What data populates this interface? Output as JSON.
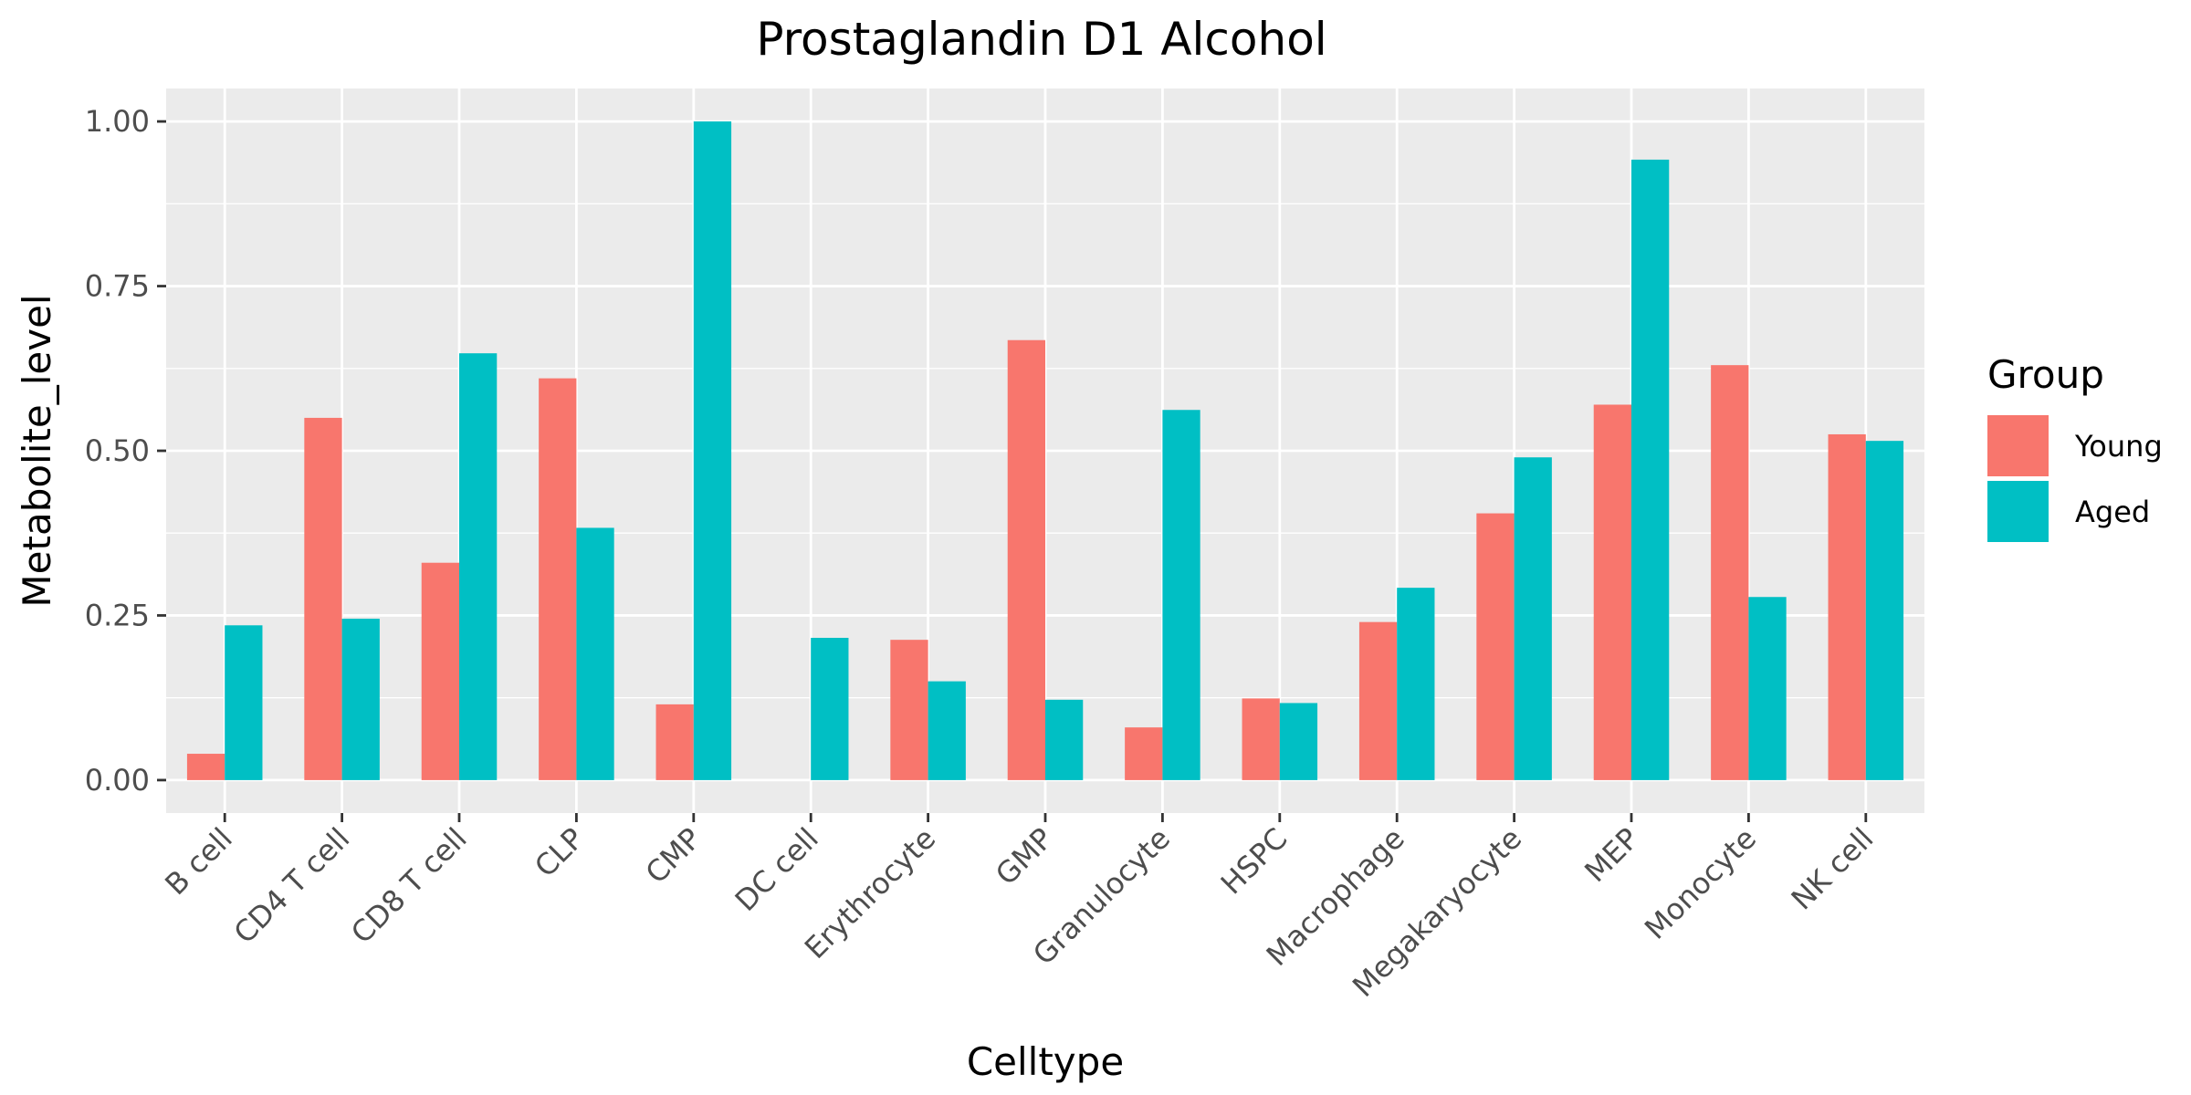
{
  "chart_data": {
    "type": "bar",
    "title": "Prostaglandin D1 Alcohol",
    "xlabel": "Celltype",
    "ylabel": "Metabolite_level",
    "ylim": [
      -0.05,
      1.05
    ],
    "yticks": [
      "0.00",
      "0.25",
      "0.50",
      "0.75",
      "1.00"
    ],
    "categories": [
      "B cell",
      "CD4 T cell",
      "CD8 T cell",
      "CLP",
      "CMP",
      "DC cell",
      "Erythrocyte",
      "GMP",
      "Granulocyte",
      "HSPC",
      "Macrophage",
      "Megakaryocyte",
      "MEP",
      "Monocyte",
      "NK cell"
    ],
    "series": [
      {
        "name": "Young",
        "color": "#F8766D",
        "values": [
          0.04,
          0.55,
          0.33,
          0.61,
          0.115,
          null,
          0.213,
          0.668,
          0.08,
          0.124,
          0.24,
          0.405,
          0.57,
          0.63,
          0.525
        ]
      },
      {
        "name": "Aged",
        "color": "#00BFC4",
        "values": [
          0.235,
          0.245,
          0.648,
          0.383,
          1.0,
          0.216,
          0.15,
          0.122,
          0.562,
          0.117,
          0.292,
          0.49,
          0.942,
          0.278,
          0.515
        ]
      }
    ],
    "legend": {
      "title": "Group",
      "position": "right"
    },
    "grid": true,
    "panel_background": "#EBEBEB",
    "grid_color": "#FFFFFF"
  }
}
